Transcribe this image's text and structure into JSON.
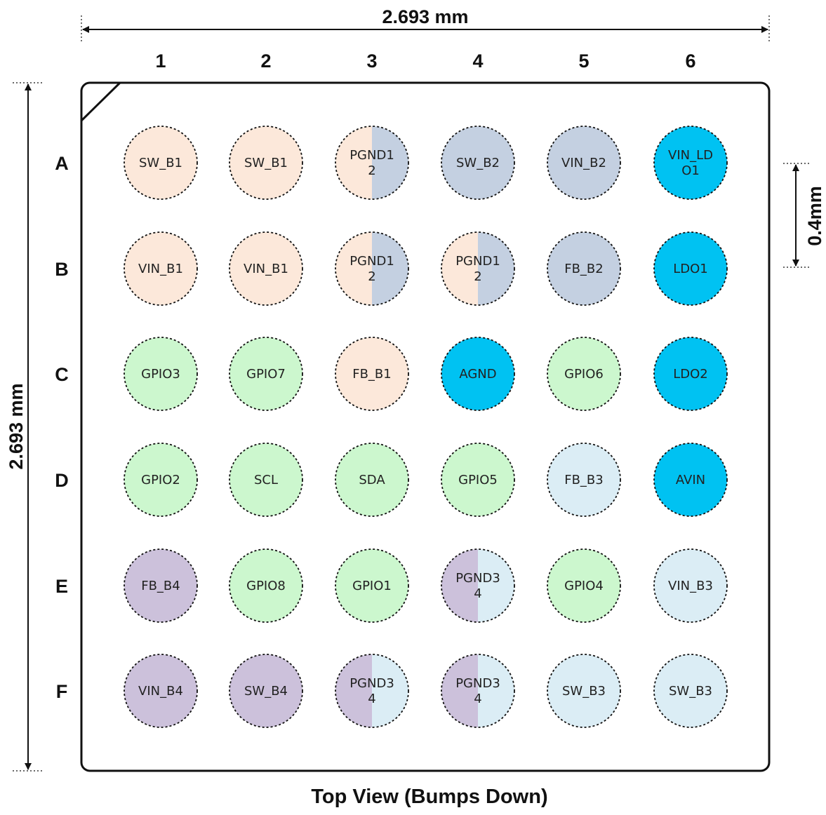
{
  "dimensions": {
    "width_label": "2.693 mm",
    "height_label": "2.693 mm",
    "pitch_label": "0.4mm"
  },
  "columns": [
    "1",
    "2",
    "3",
    "4",
    "5",
    "6"
  ],
  "rows": [
    "A",
    "B",
    "C",
    "D",
    "E",
    "F"
  ],
  "caption": "Top View (Bumps Down)",
  "colors": {
    "peach": "#fce8da",
    "steel": "#c4d0e1",
    "green": "#ccf7ce",
    "cyan": "#00c2f2",
    "lightblue": "#dbedf5",
    "lavender": "#ccc1db"
  },
  "balls": [
    [
      {
        "lines": [
          "SW_B1"
        ],
        "fill": "peach"
      },
      {
        "lines": [
          "SW_B1"
        ],
        "fill": "peach"
      },
      {
        "lines": [
          "PGND1",
          "2"
        ],
        "left": "peach",
        "right": "steel"
      },
      {
        "lines": [
          "SW_B2"
        ],
        "fill": "steel"
      },
      {
        "lines": [
          "VIN_B2"
        ],
        "fill": "steel"
      },
      {
        "lines": [
          "VIN_LD",
          "O1"
        ],
        "fill": "cyan"
      }
    ],
    [
      {
        "lines": [
          "VIN_B1"
        ],
        "fill": "peach"
      },
      {
        "lines": [
          "VIN_B1"
        ],
        "fill": "peach"
      },
      {
        "lines": [
          "PGND1",
          "2"
        ],
        "left": "peach",
        "right": "steel"
      },
      {
        "lines": [
          "PGND1",
          "2"
        ],
        "left": "peach",
        "right": "steel"
      },
      {
        "lines": [
          "FB_B2"
        ],
        "fill": "steel"
      },
      {
        "lines": [
          "LDO1"
        ],
        "fill": "cyan"
      }
    ],
    [
      {
        "lines": [
          "GPIO3"
        ],
        "fill": "green"
      },
      {
        "lines": [
          "GPIO7"
        ],
        "fill": "green"
      },
      {
        "lines": [
          "FB_B1"
        ],
        "fill": "peach"
      },
      {
        "lines": [
          "AGND"
        ],
        "fill": "cyan"
      },
      {
        "lines": [
          "GPIO6"
        ],
        "fill": "green"
      },
      {
        "lines": [
          "LDO2"
        ],
        "fill": "cyan"
      }
    ],
    [
      {
        "lines": [
          "GPIO2"
        ],
        "fill": "green"
      },
      {
        "lines": [
          "SCL"
        ],
        "fill": "green"
      },
      {
        "lines": [
          "SDA"
        ],
        "fill": "green"
      },
      {
        "lines": [
          "GPIO5"
        ],
        "fill": "green"
      },
      {
        "lines": [
          "FB_B3"
        ],
        "fill": "lightblue"
      },
      {
        "lines": [
          "AVIN"
        ],
        "fill": "cyan"
      }
    ],
    [
      {
        "lines": [
          "FB_B4"
        ],
        "fill": "lavender"
      },
      {
        "lines": [
          "GPIO8"
        ],
        "fill": "green"
      },
      {
        "lines": [
          "GPIO1"
        ],
        "fill": "green"
      },
      {
        "lines": [
          "PGND3",
          "4"
        ],
        "left": "lavender",
        "right": "lightblue"
      },
      {
        "lines": [
          "GPIO4"
        ],
        "fill": "green"
      },
      {
        "lines": [
          "VIN_B3"
        ],
        "fill": "lightblue"
      }
    ],
    [
      {
        "lines": [
          "VIN_B4"
        ],
        "fill": "lavender"
      },
      {
        "lines": [
          "SW_B4"
        ],
        "fill": "lavender"
      },
      {
        "lines": [
          "PGND3",
          "4"
        ],
        "left": "lavender",
        "right": "lightblue"
      },
      {
        "lines": [
          "PGND3",
          "4"
        ],
        "left": "lavender",
        "right": "lightblue"
      },
      {
        "lines": [
          "SW_B3"
        ],
        "fill": "lightblue"
      },
      {
        "lines": [
          "SW_B3"
        ],
        "fill": "lightblue"
      }
    ]
  ]
}
